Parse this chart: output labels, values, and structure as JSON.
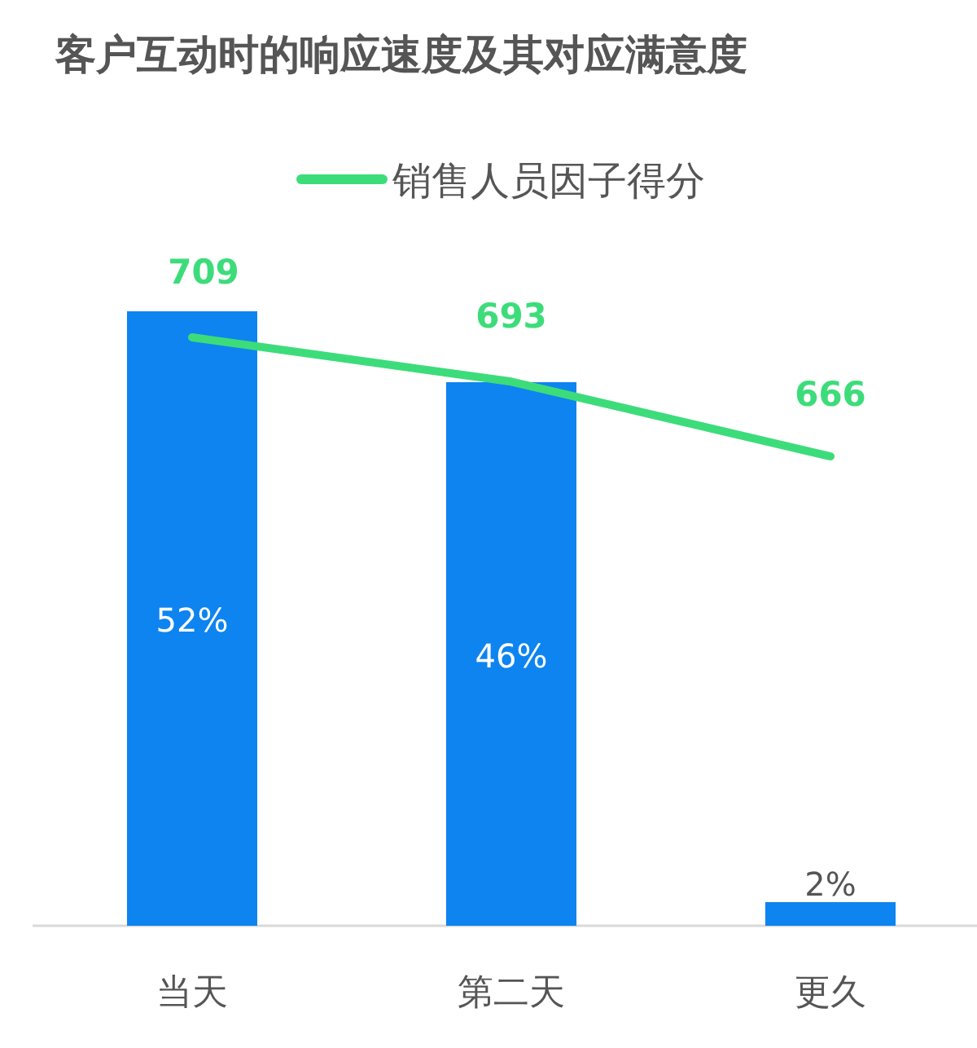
{
  "chart_data": {
    "type": "bar",
    "title": "客户互动时的响应速度及其对应满意度",
    "categories": [
      "当天",
      "第二天",
      "更久"
    ],
    "legend": "top",
    "series": [
      {
        "color": "#0d84f0",
        "values": [
          52,
          46,
          2
        ],
        "value_labels": [
          "52%",
          "46%",
          "2%"
        ]
      },
      {
        "type": "line",
        "name": "销售人员因子得分",
        "axis": "y2",
        "color": "#3ddc7a",
        "values": [
          709,
          693,
          666
        ],
        "value_labels": [
          "709",
          "693",
          "666"
        ]
      }
    ]
  }
}
